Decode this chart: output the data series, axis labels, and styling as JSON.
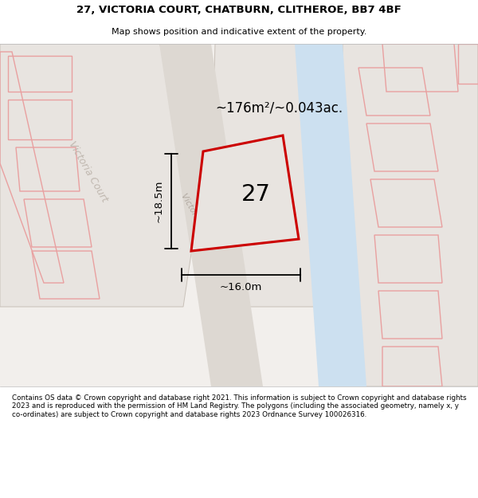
{
  "title": "27, VICTORIA COURT, CHATBURN, CLITHEROE, BB7 4BF",
  "subtitle": "Map shows position and indicative extent of the property.",
  "footer": "Contains OS data © Crown copyright and database right 2021. This information is subject to Crown copyright and database rights 2023 and is reproduced with the permission of HM Land Registry. The polygons (including the associated geometry, namely x, y co-ordinates) are subject to Crown copyright and database rights 2023 Ordnance Survey 100026316.",
  "plot_label": "27",
  "area_label": "~176m²/~0.043ac.",
  "width_label": "~16.0m",
  "height_label": "~18.5m",
  "pink_outline": "#e8a0a0",
  "red_outline": "#cc0000",
  "blue_fill": "#cce0f0",
  "road_fill": "#ddd8d2",
  "map_bg": "#f2efec",
  "block_fill": "#e8e4e0",
  "block_edge": "#c8c0b8",
  "road_label": "#c0b8b0"
}
